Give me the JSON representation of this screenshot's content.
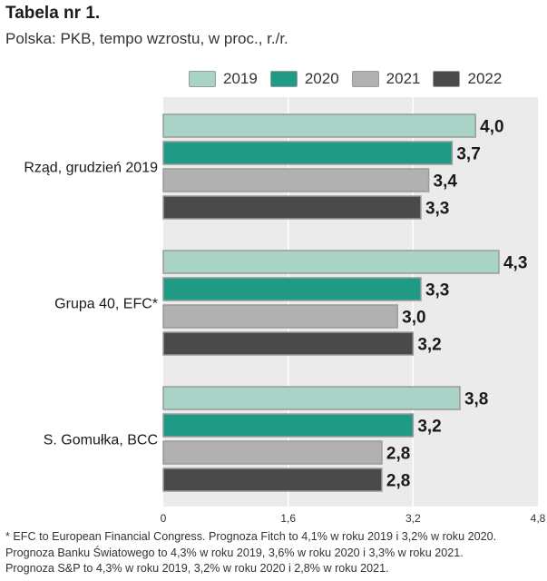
{
  "title": "Tabela nr 1.",
  "subtitle": "Polska: PKB, tempo wzrostu, w proc., r./r.",
  "colors": {
    "s2019": "#a8d3c6",
    "s2020": "#1f9a85",
    "s2021": "#b1b1b1",
    "s2022": "#4a4a4a"
  },
  "chart_data": {
    "type": "bar",
    "orientation": "horizontal",
    "categories": [
      "Rząd, grudzień 2019",
      "Grupa 40, EFC*",
      "S. Gomułka, BCC"
    ],
    "series": [
      {
        "name": "2019",
        "values": [
          4.0,
          4.3,
          3.8
        ],
        "labels": [
          "4,0",
          "4,3",
          "3,8"
        ],
        "color": "#a8d3c6"
      },
      {
        "name": "2020",
        "values": [
          3.7,
          3.3,
          3.2
        ],
        "labels": [
          "3,7",
          "3,3",
          "3,2"
        ],
        "color": "#1f9a85"
      },
      {
        "name": "2021",
        "values": [
          3.4,
          3.0,
          2.8
        ],
        "labels": [
          "3,4",
          "3,0",
          "2,8"
        ],
        "color": "#b1b1b1"
      },
      {
        "name": "2022",
        "values": [
          3.3,
          3.2,
          2.8
        ],
        "labels": [
          "3,3",
          "3,2",
          "2,8"
        ],
        "color": "#4a4a4a"
      }
    ],
    "xlim": [
      0,
      4.8
    ],
    "xticks": [
      0,
      1.6,
      3.2,
      4.8
    ],
    "xtick_labels": [
      "0",
      "1,6",
      "3,2",
      "4,8"
    ],
    "legend": "top",
    "grid": true
  },
  "footnote": [
    "* EFC to European Financial Congress. Prognoza  Fitch to 4,1% w roku 2019 i 3,2% w roku 2020.",
    " Prognoza Banku Światowego to 4,3% w roku 2019, 3,6% w roku 2020 i 3,3% w roku 2021.",
    "Prognoza S&P to 4,3% w roku 2019, 3,2% w roku 2020 i  2,8% w roku 2021."
  ]
}
